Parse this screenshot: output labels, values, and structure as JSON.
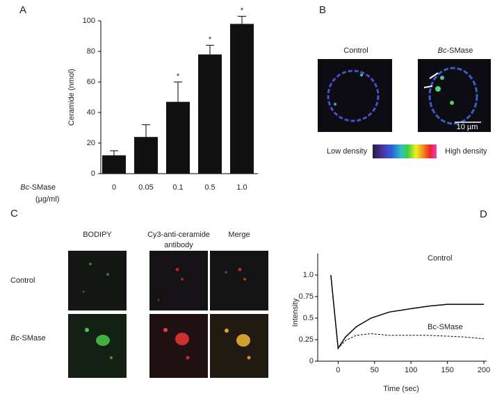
{
  "chart_data": [
    {
      "type": "bar",
      "label": "A",
      "ylabel": "Ceramide (nmol)",
      "xlabel_parts": [
        "Bc",
        "-SMase"
      ],
      "xlabel_unit": "(µg/ml)",
      "categories": [
        "0",
        "0.05",
        "0.1",
        "0.5",
        "1.0"
      ],
      "values": [
        12,
        24,
        47,
        78,
        98
      ],
      "errors": [
        3,
        8,
        13,
        6,
        5
      ],
      "significance": [
        null,
        null,
        "*",
        "*",
        "*"
      ],
      "color": "#111111",
      "ylim": [
        0,
        100
      ],
      "yticks": [
        0,
        20,
        40,
        60,
        80,
        100
      ]
    },
    {
      "type": "line",
      "label": "D",
      "xlabel": "Time (sec)",
      "ylabel": "Intensity",
      "x": [
        -10,
        0,
        10,
        25,
        45,
        70,
        100,
        125,
        150,
        175,
        200
      ],
      "series": [
        {
          "name": "Control",
          "color": "#000000",
          "style": "solid",
          "values": [
            1.0,
            0.15,
            0.28,
            0.4,
            0.5,
            0.57,
            0.61,
            0.64,
            0.66,
            0.66,
            0.66
          ]
        },
        {
          "name": "Bc-SMase",
          "color": "#000000",
          "style": "dashed",
          "values": [
            1.0,
            0.15,
            0.24,
            0.3,
            0.32,
            0.3,
            0.3,
            0.3,
            0.29,
            0.28,
            0.26
          ]
        }
      ],
      "xlim": [
        -28,
        200
      ],
      "xticks": [
        0,
        50,
        100,
        150,
        200
      ],
      "ylim": [
        0,
        1.25
      ],
      "yticks": [
        0,
        0.25,
        0.5,
        0.75,
        {
          "value": 1,
          "label": "1.0"
        }
      ]
    }
  ],
  "image_panels": {
    "B": {
      "label": "B",
      "columns": [
        [
          "Control"
        ],
        [
          "Bc",
          "-SMase"
        ]
      ],
      "scale_bar": "10 µm",
      "colorbar_low": "Low density",
      "colorbar_high": "High density"
    },
    "C": {
      "label": "C",
      "columns": [
        [
          "BODIPY"
        ],
        [
          "Cy3-anti-ceramide",
          "antibody"
        ],
        [
          "Merge"
        ]
      ],
      "rows": [
        [
          "Control"
        ],
        [
          "Bc",
          "-SMase"
        ]
      ]
    }
  }
}
